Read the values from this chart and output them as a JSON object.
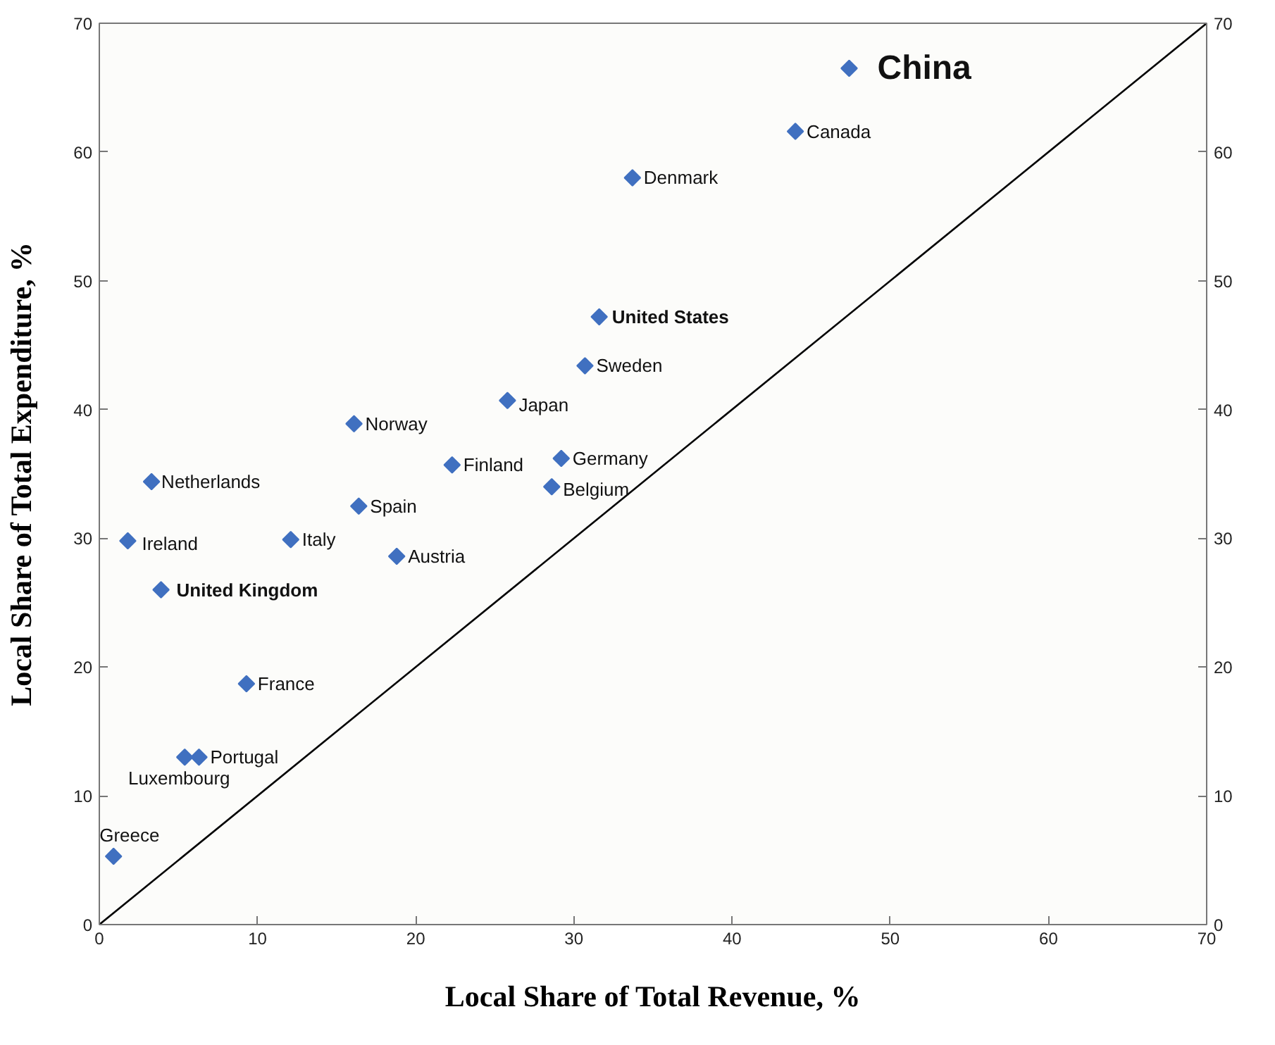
{
  "chart_data": {
    "type": "scatter",
    "xlabel": "Local Share of Total Revenue, %",
    "ylabel": "Local Share of Total Expenditure, %",
    "xlim": [
      0,
      70
    ],
    "ylim": [
      0,
      70
    ],
    "y2lim": [
      0,
      70
    ],
    "xticks": [
      0,
      10,
      20,
      30,
      40,
      50,
      60,
      70
    ],
    "yticks": [
      0,
      10,
      20,
      30,
      40,
      50,
      60,
      70
    ],
    "y2ticks": [
      0,
      10,
      20,
      30,
      40,
      50,
      60,
      70
    ],
    "grid": false,
    "series": [
      {
        "marker": "diamond",
        "color": "#4070c0",
        "x": [
          47.4,
          44.0,
          33.7,
          31.6,
          30.7,
          25.8,
          16.1,
          22.3,
          29.2,
          28.6,
          3.3,
          16.4,
          1.8,
          12.1,
          18.8,
          3.9,
          9.3,
          5.4,
          6.3,
          0.9
        ],
        "values": [
          66.5,
          61.6,
          58.0,
          47.2,
          43.4,
          40.7,
          38.9,
          35.7,
          36.2,
          34.0,
          34.4,
          32.5,
          29.8,
          29.9,
          28.6,
          26.0,
          18.7,
          13.0,
          13.0,
          5.3
        ]
      },
      {
        "type": "line",
        "color": "#000000",
        "line_style": "solid",
        "x": [
          0,
          70
        ],
        "values": [
          0,
          70
        ]
      }
    ],
    "annotations": [
      {
        "text": "China",
        "x": 47.4,
        "y": 66.5
      },
      {
        "text": "Canada",
        "x": 44.0,
        "y": 61.6
      },
      {
        "text": "Denmark",
        "x": 33.7,
        "y": 58.0
      },
      {
        "text": "United States",
        "x": 31.6,
        "y": 47.2
      },
      {
        "text": "Sweden",
        "x": 30.7,
        "y": 43.4
      },
      {
        "text": "Japan",
        "x": 25.8,
        "y": 40.7
      },
      {
        "text": "Norway",
        "x": 16.1,
        "y": 38.9
      },
      {
        "text": "Finland",
        "x": 22.3,
        "y": 35.7
      },
      {
        "text": "Germany",
        "x": 29.2,
        "y": 36.2
      },
      {
        "text": "Belgium",
        "x": 28.6,
        "y": 34.0
      },
      {
        "text": "Netherlands",
        "x": 3.3,
        "y": 34.4
      },
      {
        "text": "Spain",
        "x": 16.4,
        "y": 32.5
      },
      {
        "text": "Ireland",
        "x": 1.8,
        "y": 29.8
      },
      {
        "text": "Italy",
        "x": 12.1,
        "y": 29.9
      },
      {
        "text": "Austria",
        "x": 18.8,
        "y": 28.6
      },
      {
        "text": "United Kingdom",
        "x": 3.9,
        "y": 26.0
      },
      {
        "text": "France",
        "x": 9.3,
        "y": 18.7
      },
      {
        "text": "Luxembourg",
        "x": 5.4,
        "y": 13.0
      },
      {
        "text": "Portugal",
        "x": 6.3,
        "y": 13.0
      },
      {
        "text": "Greece",
        "x": 0.9,
        "y": 5.3
      }
    ]
  }
}
